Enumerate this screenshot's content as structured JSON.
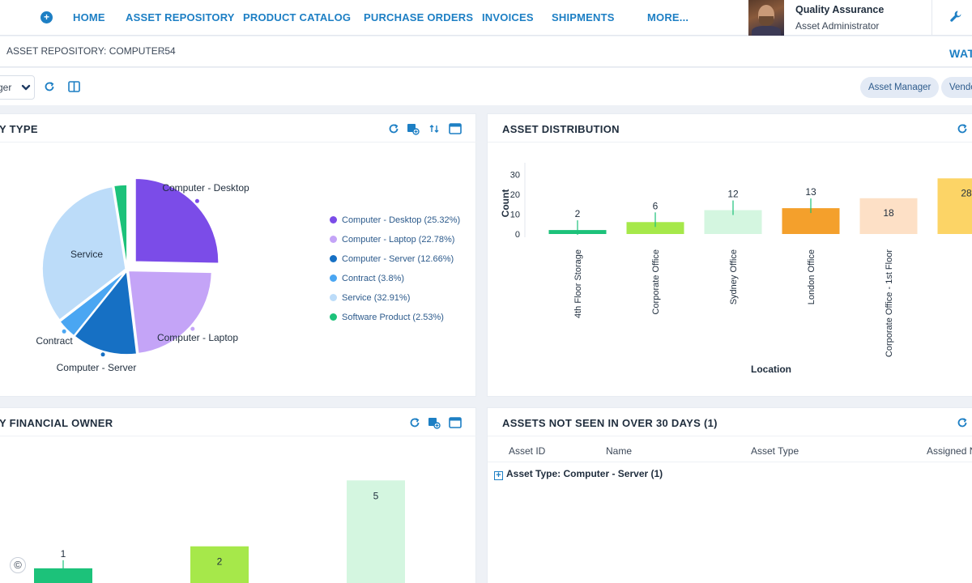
{
  "nav": {
    "items": [
      "HOME",
      "ASSET REPOSITORY",
      "PRODUCT CATALOG",
      "PURCHASE ORDERS",
      "INVOICES",
      "SHIPMENTS",
      "MORE..."
    ],
    "user_name": "Quality Assurance",
    "user_role": "Asset Administrator"
  },
  "tab": {
    "label": "ASSET REPOSITORY: COMPUTER54",
    "close": "×",
    "right_label": "WAT"
  },
  "toolbar": {
    "dashboard_value": "ger",
    "chips": [
      "Asset Manager",
      "Vendo"
    ]
  },
  "panels": {
    "by_type": {
      "title": "Y TYPE"
    },
    "distribution": {
      "title": "ASSET DISTRIBUTION"
    },
    "financial": {
      "title": "Y FINANCIAL OWNER"
    },
    "not_seen": {
      "title": "ASSETS NOT SEEN IN OVER 30 DAYS (1)",
      "columns": [
        "Asset ID",
        "Name",
        "Asset Type",
        "Assigned N"
      ],
      "group_row": "Asset Type: Computer - Server (1)"
    }
  },
  "colors": {
    "accent": "#1d7fc4",
    "desktop": "#7b4ce8",
    "laptop": "#c4a4f7",
    "server": "#1670c4",
    "contract": "#4aa6f2",
    "service": "#bcdcf9",
    "software": "#1cc27a"
  },
  "chart_data": [
    {
      "type": "pie",
      "slices": [
        {
          "label": "Computer - Desktop",
          "value": 25.32,
          "color": "#7b4ce8"
        },
        {
          "label": "Computer - Laptop",
          "value": 22.78,
          "color": "#c4a4f7"
        },
        {
          "label": "Computer - Server",
          "value": 12.66,
          "color": "#1670c4"
        },
        {
          "label": "Contract",
          "value": 3.8,
          "color": "#4aa6f2"
        },
        {
          "label": "Service",
          "value": 32.91,
          "color": "#bcdcf9"
        },
        {
          "label": "Software Product",
          "value": 2.53,
          "color": "#1cc27a"
        }
      ],
      "legend": [
        "Computer - Desktop (25.32%)",
        "Computer - Laptop (22.78%)",
        "Computer - Server (12.66%)",
        "Contract (3.8%)",
        "Service (32.91%)",
        "Software Product (2.53%)"
      ],
      "slice_labels": [
        "Computer - Desktop",
        "Computer - Laptop",
        "Computer - Server",
        "Contract",
        "Service"
      ],
      "legend_position": "right"
    },
    {
      "type": "bar",
      "categories": [
        "4th Floor Storage",
        "Corporate Office",
        "Sydney Office",
        "London Office",
        "Corporate Office - 1st Floor",
        ""
      ],
      "values": [
        2,
        6,
        12,
        13,
        18,
        28
      ],
      "colors": [
        "#1cc27a",
        "#a6e84a",
        "#d4f6e0",
        "#f4a02c",
        "#fde0c6",
        "#fcd466"
      ],
      "xlabel": "Location",
      "ylabel": "Count",
      "yticks": [
        0,
        10,
        20,
        30
      ],
      "ylim": [
        0,
        33
      ]
    },
    {
      "type": "bar",
      "categories": [
        "",
        "",
        ""
      ],
      "values": [
        1,
        2,
        5
      ],
      "colors": [
        "#1cc27a",
        "#a6e84a",
        "#d4f6e0"
      ],
      "ylim": [
        0,
        5.6
      ]
    }
  ]
}
